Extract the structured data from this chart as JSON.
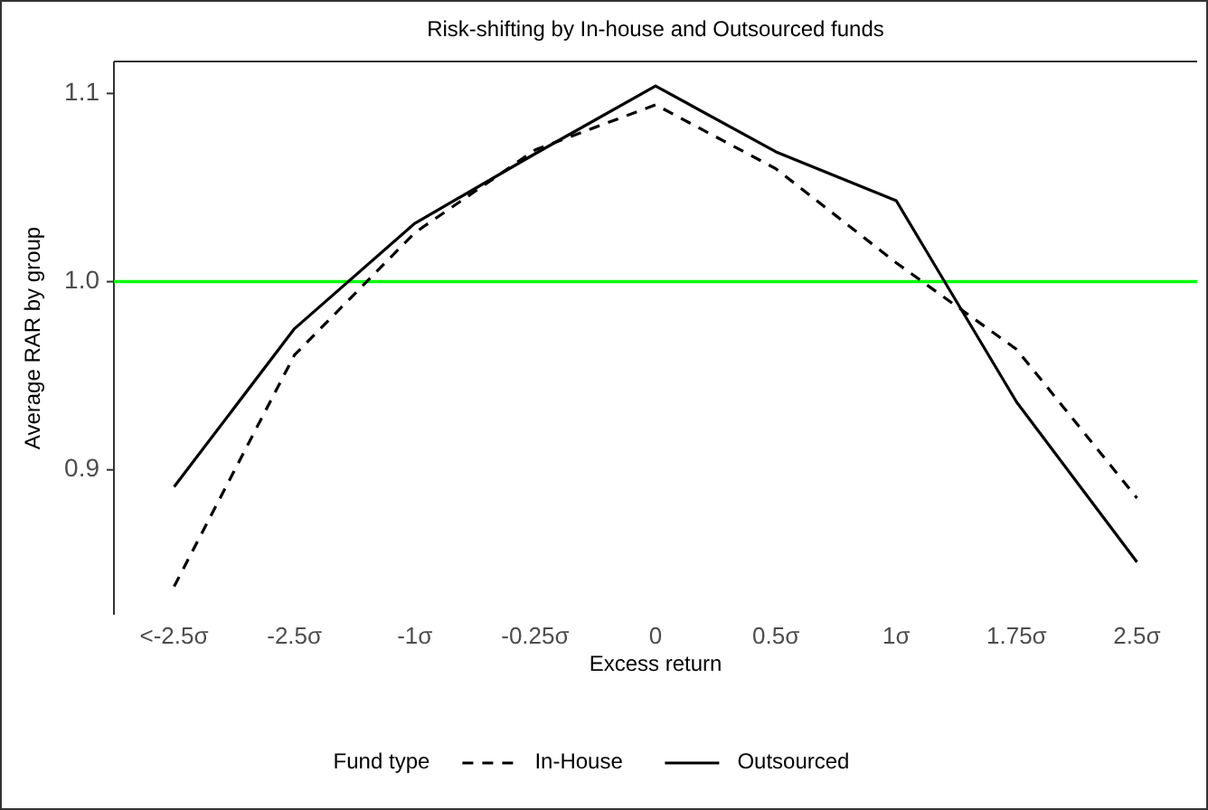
{
  "chart_data": {
    "type": "line",
    "title": "Risk-shifting by In-house and Outsourced funds",
    "xlabel": "Excess return",
    "ylabel": "Average RAR by group",
    "legend_title": "Fund type",
    "categories": [
      "<-2.5σ",
      "-2.5σ",
      "-1σ",
      "-0.25σ",
      "0",
      "0.5σ",
      "1σ",
      "1.75σ",
      "2.5σ"
    ],
    "series": [
      {
        "name": "In-House",
        "color": "#000000",
        "line_style": "dashed",
        "values": [
          0.838,
          0.961,
          1.026,
          1.07,
          1.094,
          1.06,
          1.01,
          0.964,
          0.885
        ]
      },
      {
        "name": "Outsourced",
        "color": "#000000",
        "line_style": "solid",
        "values": [
          0.891,
          0.975,
          1.031,
          1.068,
          1.104,
          1.069,
          1.043,
          0.936,
          0.851
        ]
      }
    ],
    "ylim": [
      0.823,
      1.117
    ],
    "yticks": [
      0.9,
      {
        "value": 1,
        "label": "1.0"
      },
      1.1
    ],
    "grid": false,
    "legend": "bottom",
    "marker": "none",
    "ref_lines": [
      {
        "axis": "y",
        "value": 1.0,
        "color": "#00ff00"
      }
    ]
  }
}
